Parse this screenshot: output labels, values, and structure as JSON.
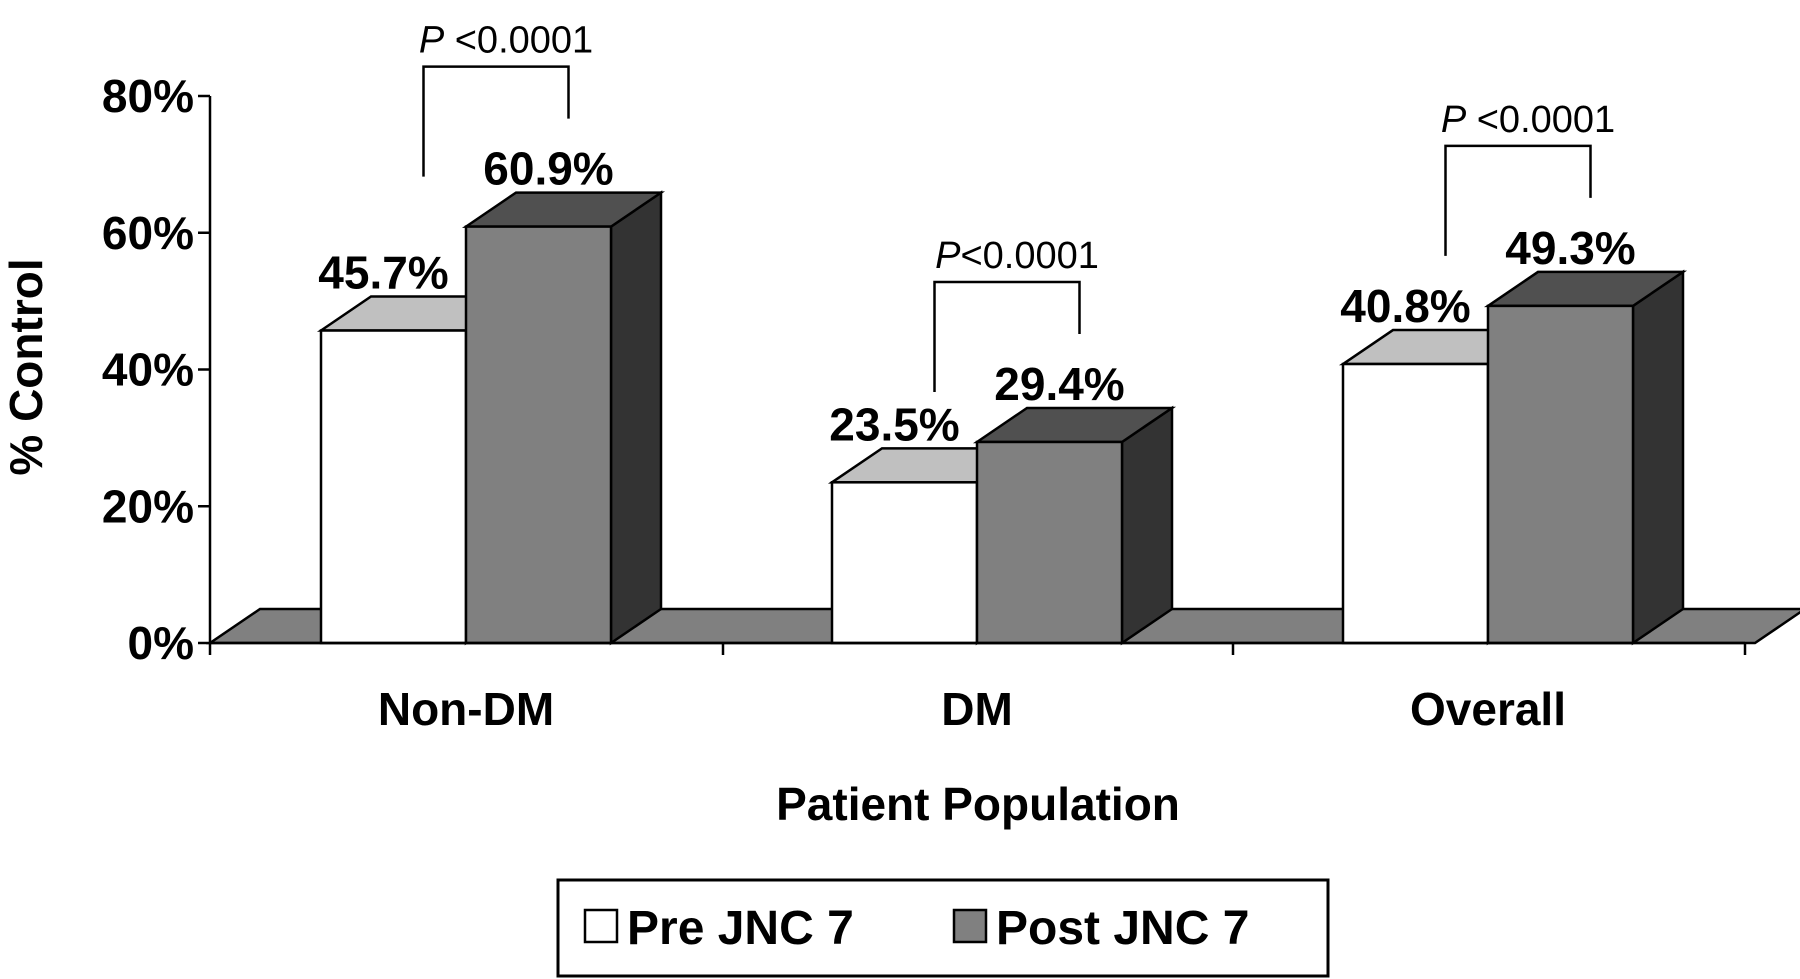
{
  "chart_data": {
    "type": "bar",
    "style": "3d-clustered",
    "xlabel": "Patient Population",
    "ylabel": "% Control",
    "ylim": [
      0,
      80
    ],
    "yticks": [
      "0%",
      "20%",
      "40%",
      "60%",
      "80%"
    ],
    "categories": [
      "Non-DM",
      "DM",
      "Overall"
    ],
    "series": [
      {
        "name": "Pre JNC 7",
        "values": [
          45.7,
          23.5,
          40.8
        ],
        "labels": [
          "45.7%",
          "23.5%",
          "40.8%"
        ],
        "color": "#ffffff",
        "top_color": "#c0c0c0"
      },
      {
        "name": "Post JNC 7",
        "values": [
          60.9,
          29.4,
          49.3
        ],
        "labels": [
          "60.9%",
          "29.4%",
          "49.3%"
        ],
        "color": "#808080",
        "top_color": "#505050",
        "side_color": "#333333"
      }
    ],
    "annotations": [
      {
        "category": "Non-DM",
        "italic": "P",
        "text": " <0.0001"
      },
      {
        "category": "DM",
        "italic": "P",
        "text": "<0.0001"
      },
      {
        "category": "Overall",
        "italic": "P",
        "text": " <0.0001"
      }
    ],
    "legend_position": "bottom",
    "floor_color": "#808080"
  }
}
